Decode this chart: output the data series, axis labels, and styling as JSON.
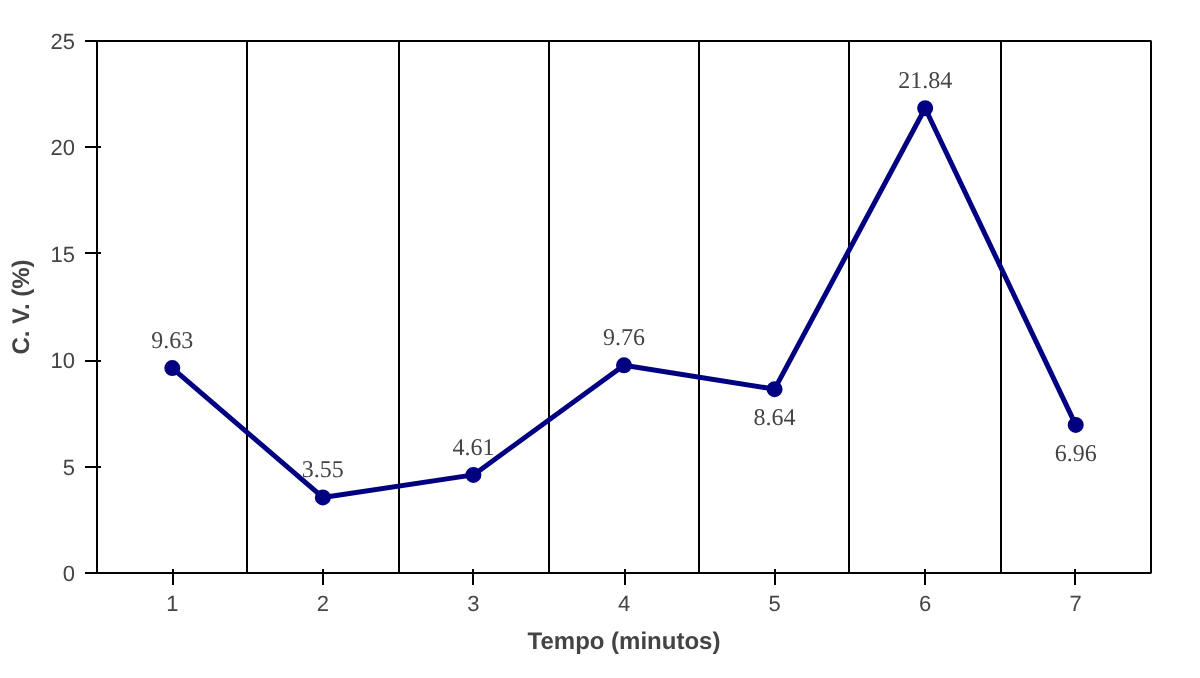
{
  "chart_data": {
    "type": "line",
    "xlabel": "Tempo (minutos)",
    "ylabel": "C. V. (%)",
    "categories": [
      "1",
      "2",
      "3",
      "4",
      "5",
      "6",
      "7"
    ],
    "series": [
      {
        "color": "#000080",
        "values": [
          9.63,
          3.55,
          4.61,
          9.76,
          8.64,
          21.84,
          6.96
        ]
      }
    ],
    "ylim": [
      0,
      25
    ],
    "yticks": [
      0,
      5,
      10,
      15,
      20,
      25
    ],
    "grid": "x",
    "marker": "circle",
    "line_style": "solid",
    "data_labels": true
  }
}
